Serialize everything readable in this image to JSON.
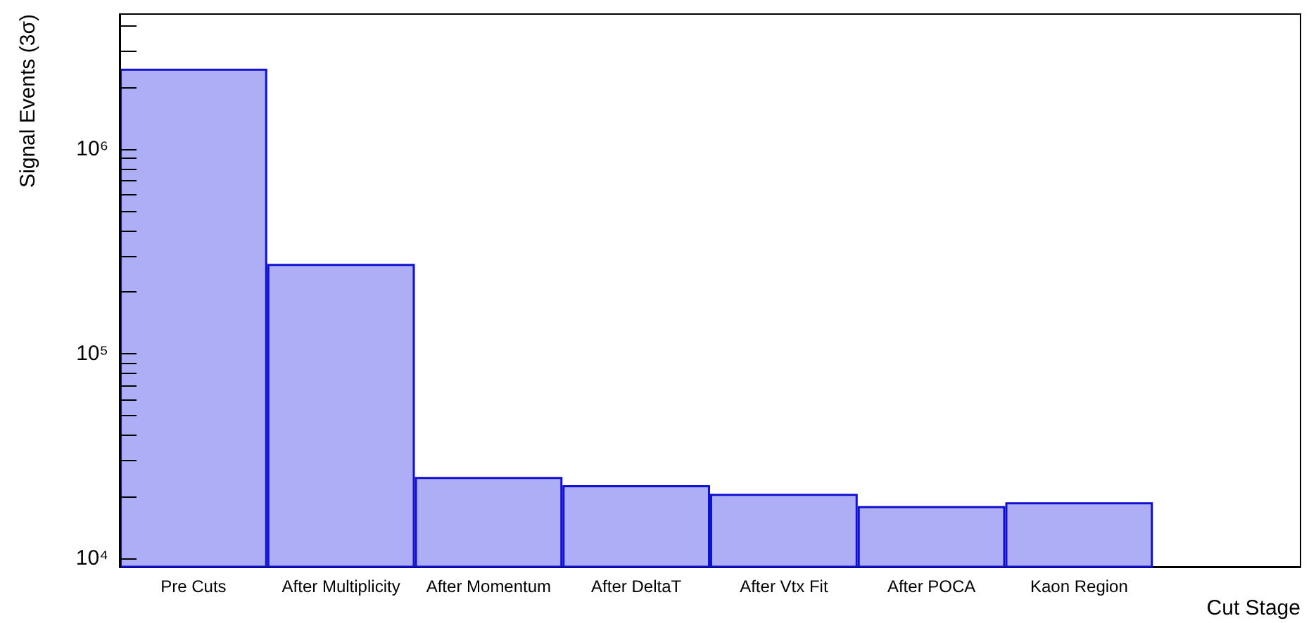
{
  "chart_data": {
    "type": "bar",
    "xlabel": "Cut Stage",
    "ylabel": "Signal Events (3σ)",
    "categories": [
      "Pre Cuts",
      "After Multiplicity",
      "After Momentum",
      "After DeltaT",
      "After Vtx Fit",
      "After POCA",
      "Kaon Region",
      null
    ],
    "values": [
      2470000,
      275000,
      25000,
      22800,
      20700,
      18000,
      18800,
      null
    ],
    "color": "#aeaef7",
    "log": true,
    "grid": false,
    "ylim": [
      9100,
      4570000
    ],
    "yticks": [
      {
        "value": 10000,
        "label": "10⁴"
      },
      {
        "value": 20000,
        "label": null
      },
      {
        "value": 30000,
        "label": null
      },
      {
        "value": 40000,
        "label": null
      },
      {
        "value": 50000,
        "label": null
      },
      {
        "value": 60000,
        "label": null
      },
      {
        "value": 70000,
        "label": null
      },
      {
        "value": 80000,
        "label": null
      },
      {
        "value": 90000,
        "label": null
      },
      {
        "value": 100000,
        "label": "10⁵"
      },
      {
        "value": 200000,
        "label": null
      },
      {
        "value": 300000,
        "label": null
      },
      {
        "value": 400000,
        "label": null
      },
      {
        "value": 500000,
        "label": null
      },
      {
        "value": 600000,
        "label": null
      },
      {
        "value": 700000,
        "label": null
      },
      {
        "value": 800000,
        "label": null
      },
      {
        "value": 900000,
        "label": null
      },
      {
        "value": 1000000,
        "label": "10⁶"
      },
      {
        "value": 2000000,
        "label": null
      },
      {
        "value": 3000000,
        "label": null
      },
      {
        "value": 4000000,
        "label": null
      }
    ]
  }
}
